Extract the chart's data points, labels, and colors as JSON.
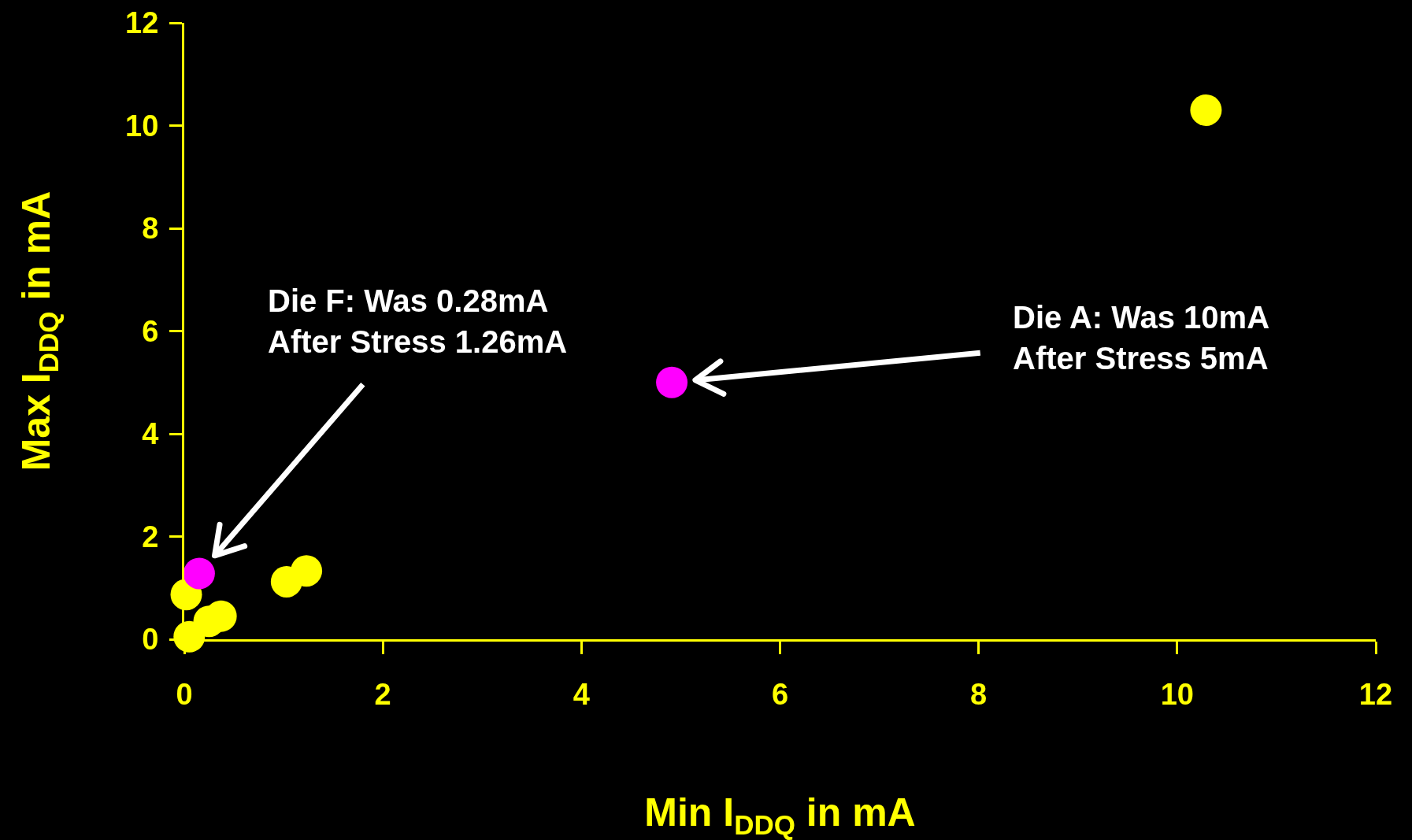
{
  "chart_data": {
    "type": "scatter",
    "xlabel": "Min I$_{DDQ}$ in mA",
    "ylabel": "Max I$_{DDQ}$ in mA",
    "xlim": [
      0,
      12
    ],
    "ylim": [
      0,
      12
    ],
    "xticks": [
      0,
      2,
      4,
      6,
      8,
      10,
      12
    ],
    "yticks": [
      0,
      2,
      4,
      6,
      8,
      10,
      12
    ],
    "grid": false,
    "marker": "circle",
    "series": [
      {
        "color": "#ffff00",
        "x": [
          10.29,
          0.02,
          1.03,
          1.23,
          0.05,
          0.25,
          0.37
        ],
        "values": [
          10.3,
          0.87,
          1.12,
          1.33,
          0.05,
          0.35,
          0.45
        ]
      },
      {
        "color": "#ff00ff",
        "x": [
          4.91,
          0.15
        ],
        "values": [
          5.0,
          1.28
        ]
      }
    ],
    "annotations": [
      {
        "text": "Die F: Was 0.28mA\nAfter Stress 1.26mA",
        "x": 0.15,
        "y": 1.28
      },
      {
        "text": "Die A: Was 10mA\nAfter Stress 5mA",
        "x": 4.91,
        "y": 5.0
      }
    ]
  }
}
